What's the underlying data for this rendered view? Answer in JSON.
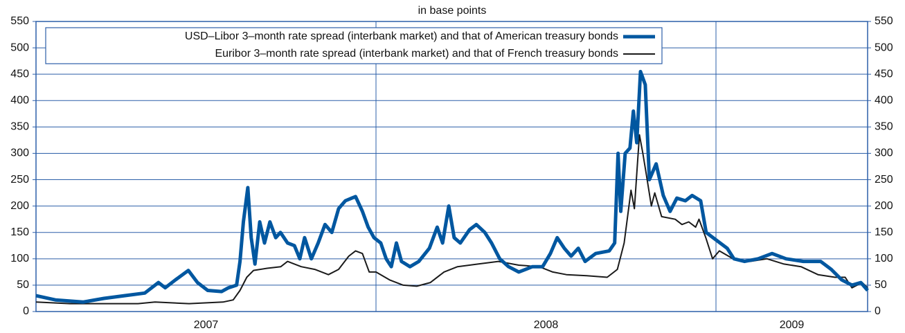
{
  "chart_data": {
    "type": "line",
    "title": "in base points",
    "xlim": [
      2007,
      2009.446
    ],
    "xticks": [
      {
        "value": 2007.5,
        "label": "2007"
      },
      {
        "value": 2008.5,
        "label": "2008"
      },
      {
        "value": 2009.223,
        "label": "2009"
      }
    ],
    "xgrid": [
      2008,
      2009
    ],
    "ylim": [
      0,
      550
    ],
    "yticks": [
      0,
      50,
      100,
      150,
      200,
      250,
      300,
      350,
      400,
      450,
      500,
      550
    ],
    "y2lim": [
      0,
      550
    ],
    "grid": true,
    "legend": "top-left",
    "series": [
      {
        "name": "USD–Libor 3–month rate spread (interbank market) and that of American treasury bonds",
        "color": "#0057a0",
        "width": 5,
        "x": [
          2007.0,
          2007.057,
          2007.138,
          2007.2,
          2007.26,
          2007.32,
          2007.36,
          2007.38,
          2007.41,
          2007.448,
          2007.475,
          2007.505,
          2007.546,
          2007.566,
          2007.59,
          2007.6,
          2007.61,
          2007.623,
          2007.633,
          2007.644,
          2007.658,
          2007.672,
          2007.688,
          2007.705,
          2007.719,
          2007.74,
          2007.76,
          2007.776,
          2007.79,
          2007.81,
          2007.83,
          2007.85,
          2007.87,
          2007.89,
          2007.91,
          2007.94,
          2007.96,
          2007.977,
          2007.994,
          2008.014,
          2008.03,
          2008.045,
          2008.06,
          2008.075,
          2008.1,
          2008.126,
          2008.157,
          2008.18,
          2008.196,
          2008.214,
          2008.23,
          2008.248,
          2008.275,
          2008.295,
          2008.32,
          2008.34,
          2008.364,
          2008.39,
          2008.42,
          2008.46,
          2008.49,
          2008.513,
          2008.533,
          2008.554,
          2008.574,
          2008.595,
          2008.615,
          2008.646,
          2008.686,
          2008.702,
          2008.712,
          2008.72,
          2008.733,
          2008.747,
          2008.757,
          2008.767,
          2008.778,
          2008.792,
          2008.804,
          2008.824,
          2008.845,
          2008.865,
          2008.885,
          2008.91,
          2008.93,
          2008.955,
          2008.971,
          2009.002,
          2009.033,
          2009.053,
          2009.084,
          2009.124,
          2009.165,
          2009.206,
          2009.257,
          2009.308,
          2009.339,
          2009.37,
          2009.4,
          2009.426,
          2009.446
        ],
        "values": [
          30,
          22,
          18,
          25,
          30,
          35,
          55,
          45,
          60,
          78,
          55,
          40,
          38,
          45,
          50,
          95,
          170,
          235,
          140,
          90,
          170,
          130,
          170,
          140,
          150,
          130,
          125,
          100,
          140,
          100,
          130,
          165,
          150,
          195,
          210,
          218,
          190,
          160,
          140,
          130,
          100,
          85,
          130,
          95,
          85,
          95,
          120,
          160,
          130,
          200,
          140,
          130,
          155,
          165,
          150,
          130,
          100,
          85,
          75,
          85,
          85,
          110,
          140,
          120,
          105,
          120,
          95,
          110,
          115,
          130,
          300,
          190,
          300,
          310,
          380,
          320,
          455,
          430,
          250,
          280,
          220,
          190,
          215,
          210,
          220,
          210,
          150,
          135,
          120,
          100,
          95,
          100,
          110,
          100,
          95,
          95,
          80,
          60,
          50,
          55,
          40
        ]
      },
      {
        "name": "Euribor 3–month rate spread (interbank market) and that of French treasury bonds",
        "color": "#1a1a1a",
        "width": 2,
        "x": [
          2007.0,
          2007.1,
          2007.2,
          2007.3,
          2007.35,
          2007.45,
          2007.55,
          2007.58,
          2007.6,
          2007.62,
          2007.64,
          2007.68,
          2007.72,
          2007.74,
          2007.78,
          2007.82,
          2007.86,
          2007.89,
          2007.92,
          2007.94,
          2007.96,
          2007.98,
          2008.0,
          2008.04,
          2008.08,
          2008.12,
          2008.16,
          2008.2,
          2008.24,
          2008.3,
          2008.36,
          2008.42,
          2008.48,
          2008.52,
          2008.56,
          2008.62,
          2008.68,
          2008.71,
          2008.73,
          2008.75,
          2008.76,
          2008.77,
          2008.775,
          2008.785,
          2008.795,
          2008.81,
          2008.82,
          2008.84,
          2008.88,
          2008.9,
          2008.92,
          2008.94,
          2008.95,
          2008.97,
          2008.99,
          2009.01,
          2009.05,
          2009.1,
          2009.15,
          2009.2,
          2009.25,
          2009.3,
          2009.35,
          2009.38,
          2009.4,
          2009.43,
          2009.446
        ],
        "values": [
          18,
          15,
          15,
          15,
          18,
          15,
          18,
          22,
          40,
          65,
          78,
          82,
          85,
          95,
          85,
          80,
          70,
          80,
          105,
          115,
          110,
          75,
          75,
          60,
          50,
          48,
          55,
          75,
          85,
          90,
          95,
          88,
          85,
          75,
          70,
          68,
          65,
          80,
          130,
          230,
          195,
          290,
          335,
          300,
          260,
          200,
          225,
          180,
          175,
          165,
          170,
          160,
          175,
          140,
          100,
          115,
          100,
          95,
          100,
          90,
          85,
          70,
          65,
          65,
          45,
          55,
          45
        ]
      }
    ]
  }
}
